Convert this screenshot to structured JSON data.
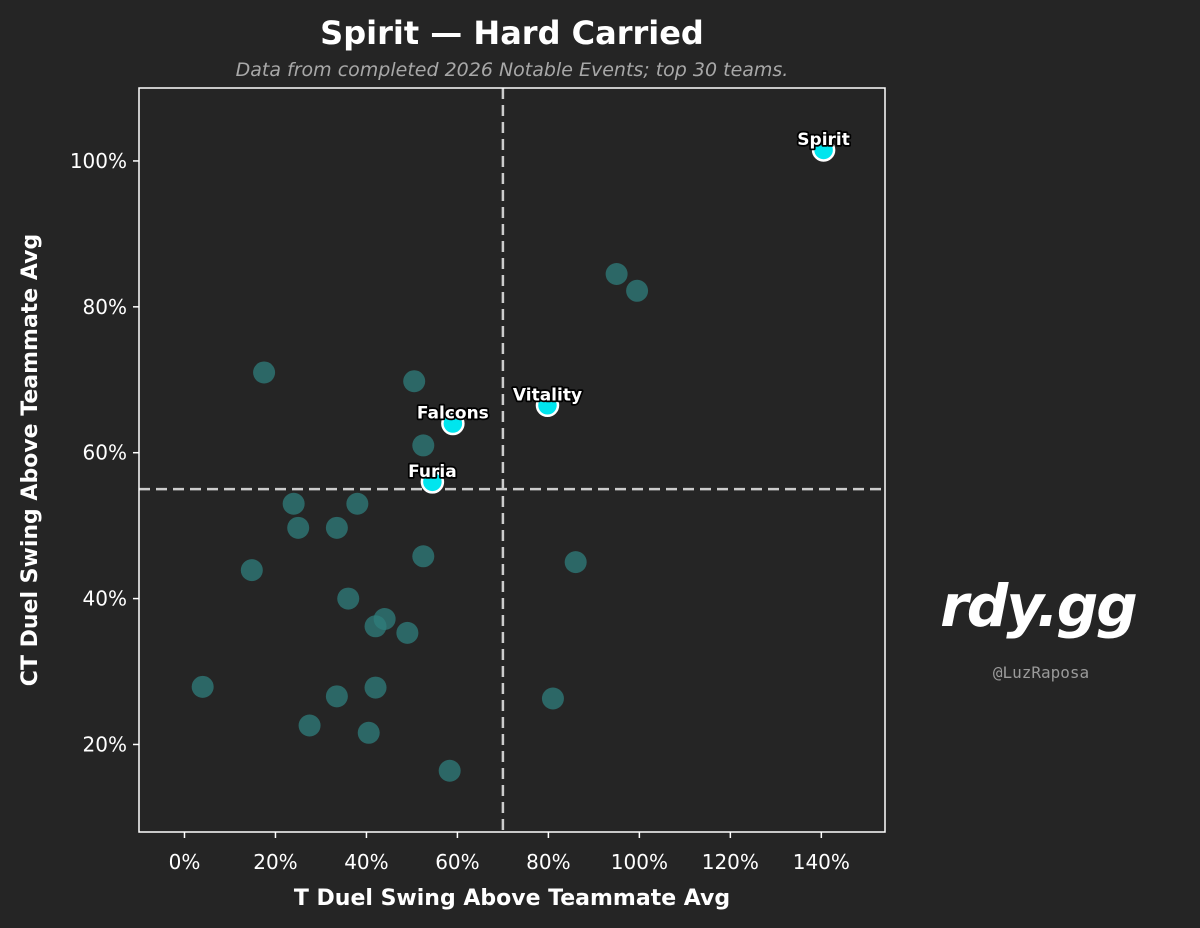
{
  "chart_data": {
    "type": "scatter",
    "title": "Spirit — Hard Carried",
    "subtitle": "Data from completed 2026 Notable Events; top 30 teams.",
    "xlabel": "T Duel Swing Above Teammate Avg",
    "ylabel": "CT Duel Swing Above Teammate Avg",
    "xlim": [
      -10,
      154
    ],
    "ylim": [
      8,
      110
    ],
    "xticks": [
      0,
      20,
      40,
      60,
      80,
      100,
      120,
      140
    ],
    "yticks": [
      20,
      40,
      60,
      80,
      100
    ],
    "xtick_labels": [
      "0%",
      "20%",
      "40%",
      "60%",
      "80%",
      "100%",
      "120%",
      "140%"
    ],
    "ytick_labels": [
      "20%",
      "40%",
      "60%",
      "80%",
      "100%"
    ],
    "grid": false,
    "reference_lines": {
      "x": 70,
      "y": 55
    },
    "highlighted": [
      {
        "label": "Spirit",
        "x": 140.5,
        "y": 101.5
      },
      {
        "label": "Vitality",
        "x": 79.8,
        "y": 66.5
      },
      {
        "label": "Falcons",
        "x": 59,
        "y": 64
      },
      {
        "label": "Furia",
        "x": 54.5,
        "y": 56
      }
    ],
    "others": [
      {
        "x": 95,
        "y": 84.5
      },
      {
        "x": 99.5,
        "y": 82.2
      },
      {
        "x": 17.5,
        "y": 71
      },
      {
        "x": 50.5,
        "y": 69.8
      },
      {
        "x": 52.5,
        "y": 61
      },
      {
        "x": 24,
        "y": 53
      },
      {
        "x": 38,
        "y": 53
      },
      {
        "x": 25,
        "y": 49.7
      },
      {
        "x": 33.5,
        "y": 49.7
      },
      {
        "x": 52.5,
        "y": 45.8
      },
      {
        "x": 86,
        "y": 45
      },
      {
        "x": 14.8,
        "y": 43.9
      },
      {
        "x": 36,
        "y": 40
      },
      {
        "x": 44,
        "y": 37.2
      },
      {
        "x": 42,
        "y": 36.2
      },
      {
        "x": 49,
        "y": 35.3
      },
      {
        "x": 4,
        "y": 27.9
      },
      {
        "x": 42,
        "y": 27.8
      },
      {
        "x": 33.5,
        "y": 26.6
      },
      {
        "x": 81,
        "y": 26.3
      },
      {
        "x": 27.5,
        "y": 22.6
      },
      {
        "x": 40.5,
        "y": 21.6
      },
      {
        "x": 58.3,
        "y": 16.4
      }
    ],
    "colors": {
      "background": "#252525",
      "highlight_fill": "#00e5ee",
      "highlight_edge": "#ffffff",
      "other_fill": "#2f7e7c",
      "reference_line": "#cccccc",
      "axes": "#ffffff"
    }
  },
  "branding": {
    "logo_text": "rdy.gg",
    "handle": "@LuzRaposa"
  }
}
